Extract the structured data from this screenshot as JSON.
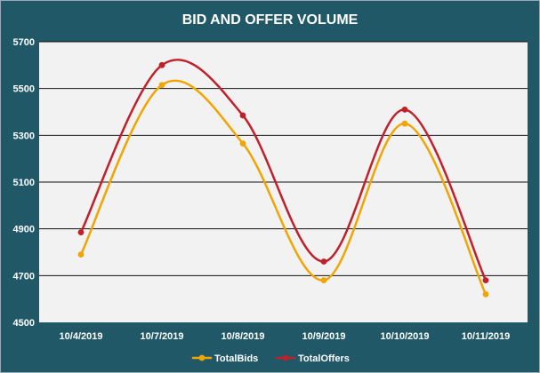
{
  "colors": {
    "chart_background": "#205868",
    "plot_background": "#f2f2f2",
    "gridline": "#111111",
    "title_text": "#ffffff",
    "axis_text": "#ffffff",
    "total_bids": "#f0a500",
    "total_offers": "#c0202a"
  },
  "chart_data": {
    "type": "line",
    "title": "BID AND OFFER VOLUME",
    "xlabel": "",
    "ylabel": "",
    "categories": [
      "10/4/2019",
      "10/7/2019",
      "10/8/2019",
      "10/9/2019",
      "10/10/2019",
      "10/11/2019"
    ],
    "ylim": [
      4500,
      5700
    ],
    "yticks": [
      "4500",
      "4700",
      "4900",
      "5100",
      "5300",
      "5500",
      "5700"
    ],
    "grid": true,
    "smooth": true,
    "legend_position": "bottom",
    "series": [
      {
        "name": "TotalBids",
        "color": "#f0a500",
        "values": [
          4790,
          5515,
          5265,
          4680,
          5350,
          4620
        ]
      },
      {
        "name": "TotalOffers",
        "color": "#c0202a",
        "values": [
          4885,
          5600,
          5385,
          4760,
          5410,
          4680
        ]
      }
    ]
  }
}
